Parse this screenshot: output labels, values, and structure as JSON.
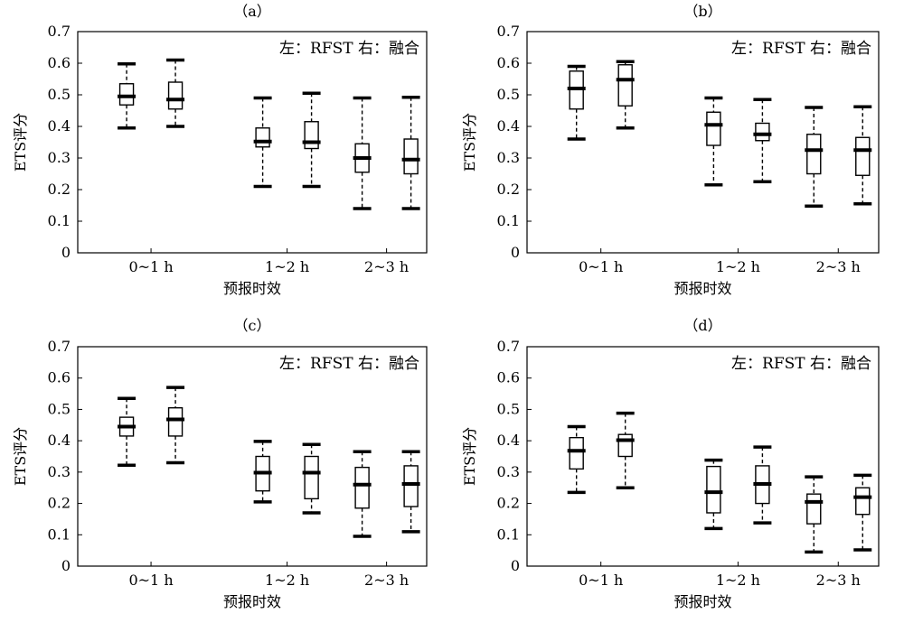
{
  "chart_data": [
    {
      "type": "box",
      "panel_label": "（a）",
      "legend": "左：RFST 右：融合",
      "xlabel": "预报时效",
      "ylabel": "ETS评分",
      "categories": [
        "0~1 h",
        "1~2 h",
        "2~3 h"
      ],
      "ylim": [
        0,
        0.7
      ],
      "yticks": [
        "0",
        "0.1",
        "0.2",
        "0.3",
        "0.4",
        "0.5",
        "0.6",
        "0.7"
      ],
      "series": [
        {
          "boxes": [
            {
              "min": 0.395,
              "q1": 0.468,
              "median": 0.495,
              "q3": 0.535,
              "max": 0.598
            },
            {
              "min": 0.21,
              "q1": 0.335,
              "median": 0.352,
              "q3": 0.395,
              "max": 0.49
            },
            {
              "min": 0.14,
              "q1": 0.255,
              "median": 0.3,
              "q3": 0.345,
              "max": 0.49
            }
          ]
        },
        {
          "boxes": [
            {
              "min": 0.4,
              "q1": 0.455,
              "median": 0.485,
              "q3": 0.54,
              "max": 0.61
            },
            {
              "min": 0.21,
              "q1": 0.33,
              "median": 0.35,
              "q3": 0.415,
              "max": 0.505
            },
            {
              "min": 0.14,
              "q1": 0.25,
              "median": 0.295,
              "q3": 0.36,
              "max": 0.492
            }
          ]
        }
      ]
    },
    {
      "type": "box",
      "panel_label": "（b）",
      "legend": "左：RFST 右：融合",
      "xlabel": "预报时效",
      "ylabel": "ETS评分",
      "categories": [
        "0~1 h",
        "1~2 h",
        "2~3 h"
      ],
      "ylim": [
        0,
        0.7
      ],
      "yticks": [
        "0",
        "0.1",
        "0.2",
        "0.3",
        "0.4",
        "0.5",
        "0.6",
        "0.7"
      ],
      "series": [
        {
          "boxes": [
            {
              "min": 0.36,
              "q1": 0.455,
              "median": 0.52,
              "q3": 0.575,
              "max": 0.59
            },
            {
              "min": 0.215,
              "q1": 0.34,
              "median": 0.405,
              "q3": 0.445,
              "max": 0.49
            },
            {
              "min": 0.148,
              "q1": 0.25,
              "median": 0.325,
              "q3": 0.375,
              "max": 0.46
            }
          ]
        },
        {
          "boxes": [
            {
              "min": 0.395,
              "q1": 0.465,
              "median": 0.548,
              "q3": 0.595,
              "max": 0.605
            },
            {
              "min": 0.225,
              "q1": 0.355,
              "median": 0.375,
              "q3": 0.41,
              "max": 0.485
            },
            {
              "min": 0.155,
              "q1": 0.245,
              "median": 0.325,
              "q3": 0.365,
              "max": 0.462
            }
          ]
        }
      ]
    },
    {
      "type": "box",
      "panel_label": "（c）",
      "legend": "左：RFST 右：融合",
      "xlabel": "预报时效",
      "ylabel": "ETS评分",
      "categories": [
        "0~1 h",
        "1~2 h",
        "2~3 h"
      ],
      "ylim": [
        0,
        0.7
      ],
      "yticks": [
        "0",
        "0.1",
        "0.2",
        "0.3",
        "0.4",
        "0.5",
        "0.6",
        "0.7"
      ],
      "series": [
        {
          "boxes": [
            {
              "min": 0.322,
              "q1": 0.415,
              "median": 0.445,
              "q3": 0.475,
              "max": 0.535
            },
            {
              "min": 0.205,
              "q1": 0.24,
              "median": 0.298,
              "q3": 0.35,
              "max": 0.398
            },
            {
              "min": 0.095,
              "q1": 0.185,
              "median": 0.26,
              "q3": 0.315,
              "max": 0.365
            }
          ]
        },
        {
          "boxes": [
            {
              "min": 0.33,
              "q1": 0.415,
              "median": 0.468,
              "q3": 0.505,
              "max": 0.57
            },
            {
              "min": 0.17,
              "q1": 0.215,
              "median": 0.298,
              "q3": 0.35,
              "max": 0.388
            },
            {
              "min": 0.11,
              "q1": 0.19,
              "median": 0.262,
              "q3": 0.32,
              "max": 0.365
            }
          ]
        }
      ]
    },
    {
      "type": "box",
      "panel_label": "（d）",
      "legend": "左：RFST 右：融合",
      "xlabel": "预报时效",
      "ylabel": "ETS评分",
      "categories": [
        "0~1 h",
        "1~2 h",
        "2~3 h"
      ],
      "ylim": [
        0,
        0.7
      ],
      "yticks": [
        "0",
        "0.1",
        "0.2",
        "0.3",
        "0.4",
        "0.5",
        "0.6",
        "0.7"
      ],
      "series": [
        {
          "boxes": [
            {
              "min": 0.235,
              "q1": 0.31,
              "median": 0.368,
              "q3": 0.41,
              "max": 0.445
            },
            {
              "min": 0.12,
              "q1": 0.17,
              "median": 0.236,
              "q3": 0.318,
              "max": 0.338
            },
            {
              "min": 0.045,
              "q1": 0.135,
              "median": 0.205,
              "q3": 0.23,
              "max": 0.285
            }
          ]
        },
        {
          "boxes": [
            {
              "min": 0.25,
              "q1": 0.35,
              "median": 0.402,
              "q3": 0.42,
              "max": 0.488
            },
            {
              "min": 0.138,
              "q1": 0.2,
              "median": 0.262,
              "q3": 0.32,
              "max": 0.38
            },
            {
              "min": 0.052,
              "q1": 0.165,
              "median": 0.22,
              "q3": 0.25,
              "max": 0.29
            }
          ]
        }
      ]
    }
  ]
}
